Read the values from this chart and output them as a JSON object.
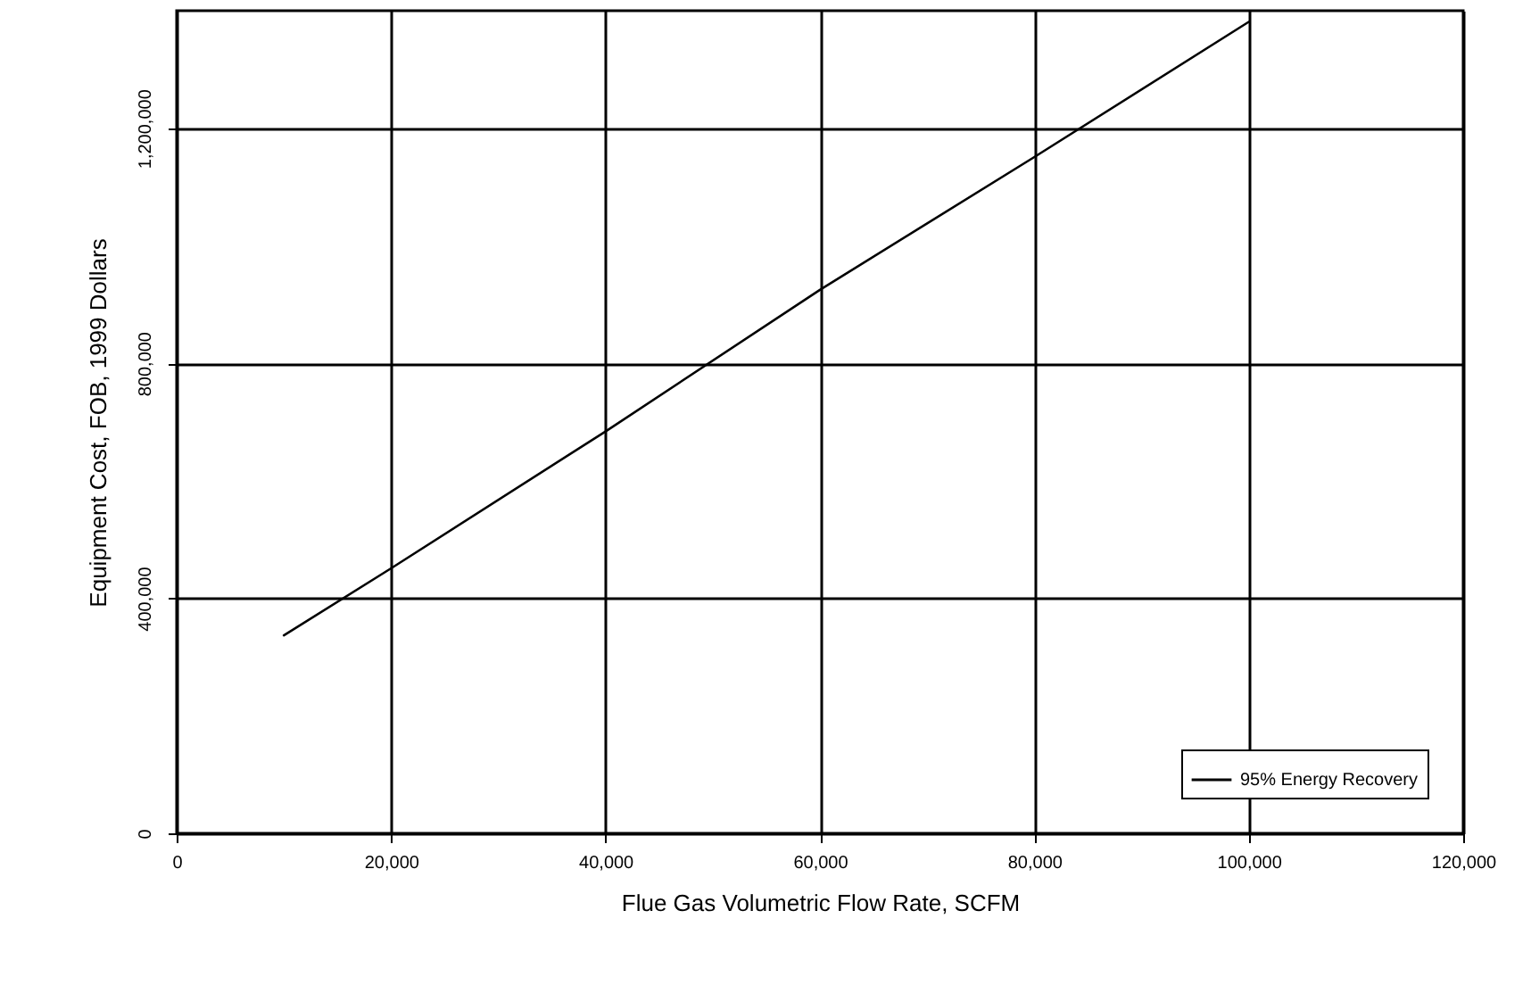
{
  "chart_data": {
    "type": "line",
    "xlabel": "Flue Gas Volumetric Flow Rate, SCFM",
    "ylabel": "Equipment Cost, FOB, 1999 Dollars",
    "x": [
      10000,
      20000,
      40000,
      60000,
      80000,
      100000
    ],
    "series": [
      {
        "name": "95% Energy Recovery",
        "color": "#000000",
        "values": [
          337000,
          451000,
          684000,
          925000,
          1151000,
          1381000
        ]
      }
    ],
    "xlim": [
      0,
      120000
    ],
    "xticks": [
      0,
      {
        "value": 20000,
        "label": "20,000"
      },
      {
        "value": 40000,
        "label": "40,000"
      },
      {
        "value": 60000,
        "label": "60,000"
      },
      {
        "value": 80000,
        "label": "80,000"
      },
      {
        "value": 100000,
        "label": "100,000"
      },
      {
        "value": 120000,
        "label": "120,000"
      }
    ],
    "ylim": [
      0,
      1400000
    ],
    "yticks": [
      0,
      {
        "value": 400000,
        "label": "400,000"
      },
      {
        "value": 800000,
        "label": "800,000"
      },
      {
        "value": 1200000,
        "label": "1,200,000"
      }
    ],
    "grid": true,
    "legend": "bottom right",
    "marker": "none",
    "line_style": "solid"
  }
}
